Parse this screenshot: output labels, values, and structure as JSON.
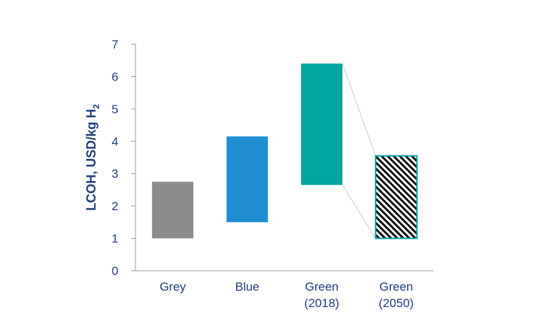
{
  "chart_data": {
    "type": "bar",
    "subtype": "floating-range",
    "title": "",
    "xlabel": "",
    "ylabel": "LCOH, USD/kg H",
    "ylabel_subscript": "2",
    "ylim": [
      0,
      7
    ],
    "yticks": [
      0,
      1,
      2,
      3,
      4,
      5,
      6,
      7
    ],
    "grid": false,
    "categories": [
      {
        "line1": "Grey",
        "line2": ""
      },
      {
        "line1": "Blue",
        "line2": ""
      },
      {
        "line1": "Green",
        "line2": "(2018)"
      },
      {
        "line1": "Green",
        "line2": "(2050)"
      }
    ],
    "ranges": [
      {
        "low": 1.0,
        "high": 2.75,
        "color": "#8c8c8c",
        "pattern": "solid"
      },
      {
        "low": 1.5,
        "high": 4.15,
        "color": "#1f8fd2",
        "pattern": "solid"
      },
      {
        "low": 2.65,
        "high": 6.4,
        "color": "#00a59e",
        "pattern": "solid"
      },
      {
        "low": 1.0,
        "high": 3.55,
        "color": "#00a59e",
        "pattern": "diagonal-hatch"
      }
    ],
    "connectors": "Green (2018) to Green (2050), thin grey lines"
  }
}
